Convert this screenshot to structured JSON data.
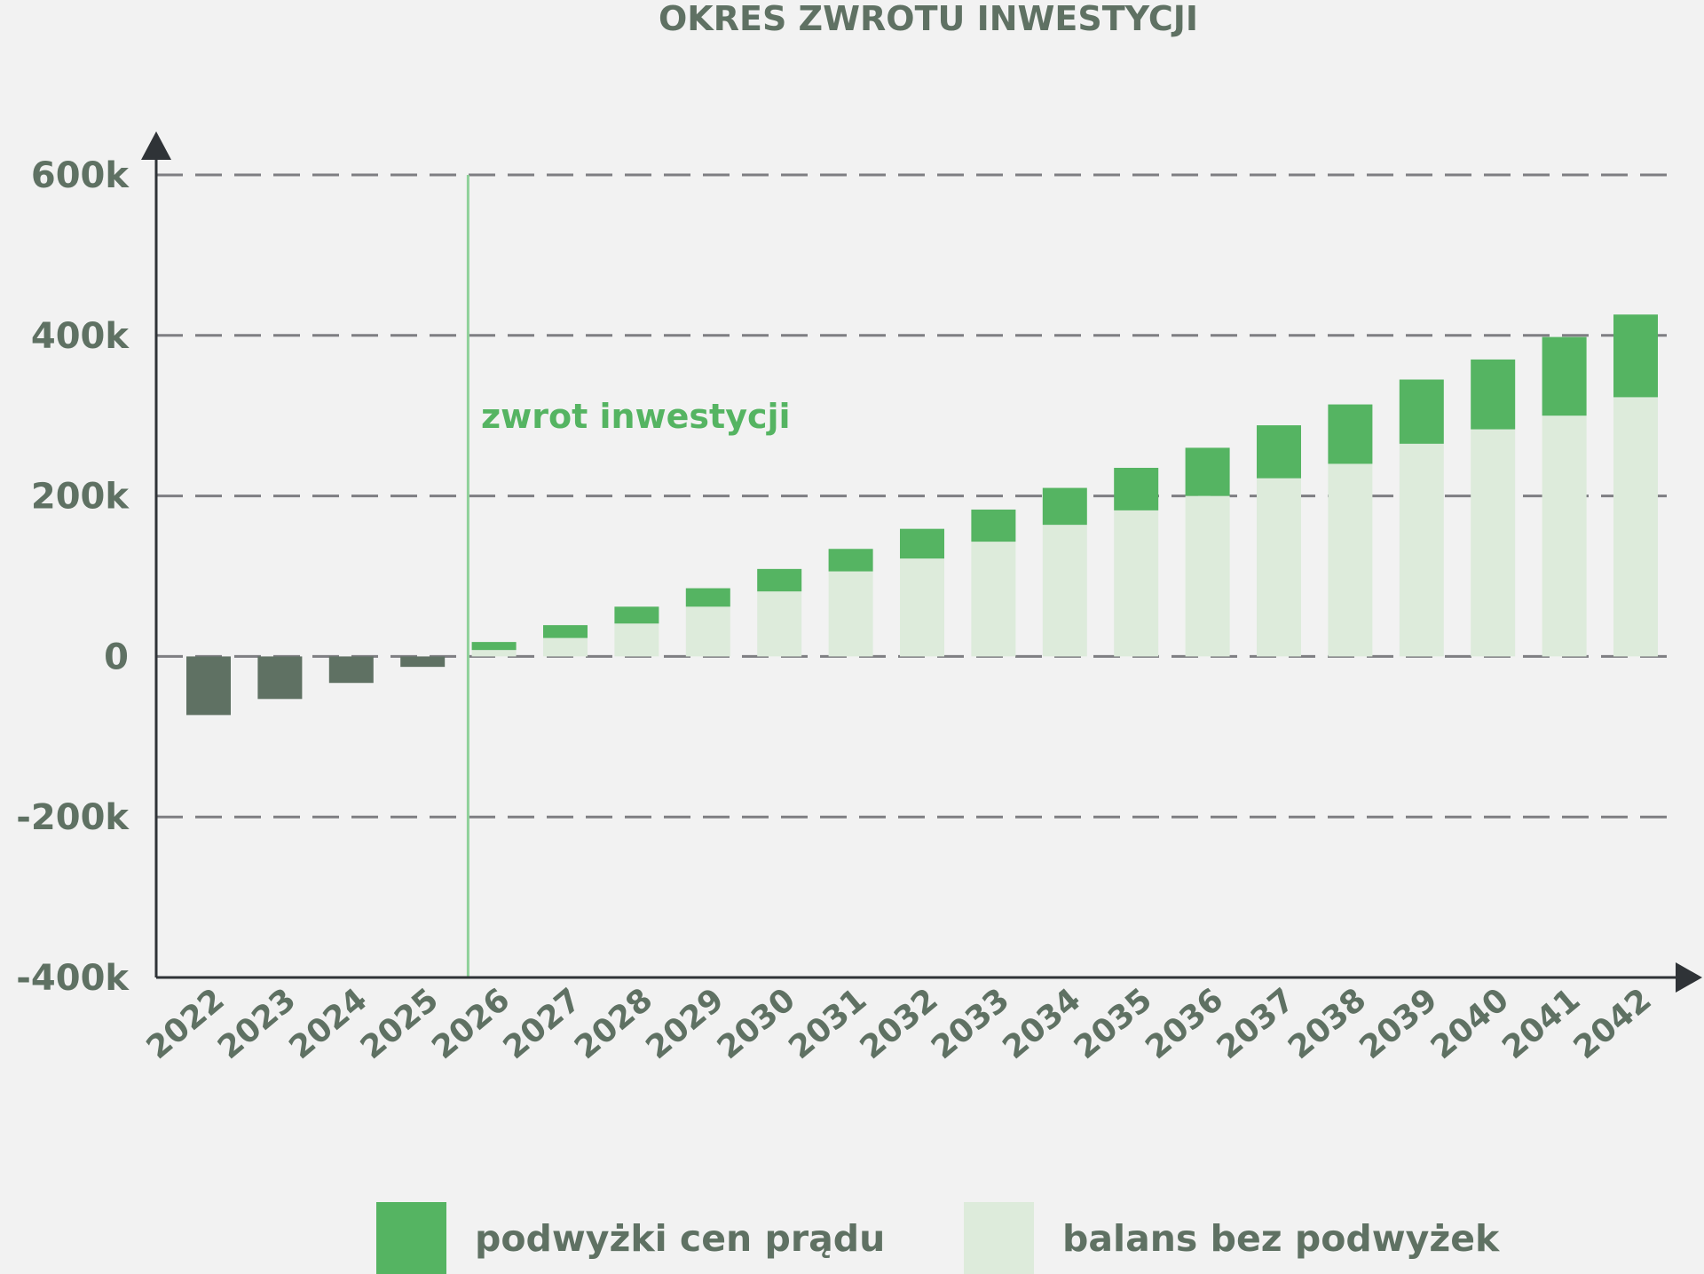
{
  "chart_data": {
    "type": "bar",
    "title": "OKRES ZWROTU INWESTYCJI",
    "annotation": "zwrot inwestycji",
    "categories": [
      "2022",
      "2023",
      "2024",
      "2025",
      "2026",
      "2027",
      "2028",
      "2029",
      "2030",
      "2031",
      "2032",
      "2033",
      "2034",
      "2035",
      "2036",
      "2037",
      "2038",
      "2039",
      "2040",
      "2041",
      "2042"
    ],
    "series": [
      {
        "name": "balans bez podwyżek",
        "color": "#ddebdb",
        "values": [
          -73,
          -53,
          -33,
          -13,
          8,
          23,
          41,
          62,
          81,
          106,
          122,
          143,
          164,
          182,
          200,
          222,
          240,
          265,
          283,
          300,
          323
        ]
      },
      {
        "name": "podwyżki cen prądu",
        "color": "#55b462",
        "values": [
          0,
          0,
          0,
          0,
          10,
          16,
          21,
          23,
          28,
          28,
          37,
          40,
          46,
          53,
          60,
          66,
          74,
          80,
          87,
          98,
          103
        ]
      }
    ],
    "negative_color": "#5f7163",
    "payback_after": "2025",
    "yticks": [
      "600k",
      "400k",
      "200k",
      "0",
      "-200k",
      "-400k"
    ],
    "ytick_values": [
      600,
      400,
      200,
      0,
      -200,
      -400
    ],
    "ylim": [
      -400,
      600
    ],
    "grid": true,
    "legend_position": "bottom"
  }
}
